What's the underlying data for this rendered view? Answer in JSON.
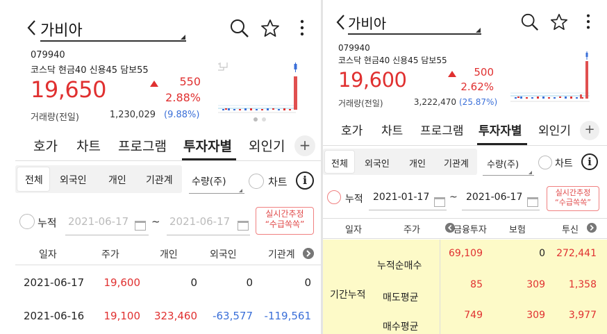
{
  "left": {
    "stock_name": "가비아",
    "code": "079940",
    "market_info": "코스닥 현금40 신용45 담보55",
    "price": "19,650",
    "change": "550",
    "change_pct": "2.88%",
    "volume_label": "거래량(전일)",
    "volume": "1,230,029",
    "volume_pct": "(9.88%)",
    "tabs": [
      "호가",
      "차트",
      "프로그램",
      "투자자별",
      "외인기"
    ],
    "plus": "+",
    "segments": [
      "전체",
      "외국인",
      "개인",
      "기관계"
    ],
    "unit": "수량(주)",
    "chart_toggle": "차트",
    "info": "i",
    "cumulative_label": "누적",
    "date_from": "2021-06-17",
    "tilde": "~",
    "date_to": "2021-06-17",
    "realtime_btn": [
      "실시간추정",
      "“수급쏙쏙”"
    ],
    "columns": [
      "일자",
      "주가",
      "개인",
      "외국인",
      "기관계"
    ],
    "rows": [
      {
        "date": "2021-06-17",
        "price": "19,600",
        "individual": "0",
        "foreign": "0",
        "institution": "0"
      },
      {
        "date": "2021-06-16",
        "price": "19,100",
        "individual": "323,460",
        "foreign": "-63,577",
        "institution": "-119,561"
      }
    ]
  },
  "right": {
    "stock_name": "가비아",
    "code": "079940",
    "market_info": "코스닥 현금40 신용45 담보55",
    "price": "19,600",
    "change": "500",
    "change_pct": "2.62%",
    "volume_label": "거래량(전일)",
    "volume": "3,222,470",
    "volume_pct": "(25.87%)",
    "tabs": [
      "호가",
      "차트",
      "프로그램",
      "투자자별",
      "외인기"
    ],
    "plus": "+",
    "segments": [
      "전체",
      "외국인",
      "개인",
      "기관계"
    ],
    "unit": "수량(주)",
    "chart_toggle": "차트",
    "info": "i",
    "cumulative_label": "누적",
    "date_from": "2021-01-17",
    "tilde": "~",
    "date_to": "2021-06-17",
    "realtime_btn": [
      "실시간추정",
      "“수급쏙쏙”"
    ],
    "columns": [
      "일자",
      "주가",
      "금융투자",
      "보험",
      "투신"
    ],
    "period_label": "기간누적",
    "rows": [
      {
        "label": "누적순매수",
        "fin": "69,109",
        "ins": "0",
        "trust": "272,441"
      },
      {
        "label": "매도평균",
        "fin": "85",
        "ins": "309",
        "trust": "1,358"
      },
      {
        "label": "매수평균",
        "fin": "749",
        "ins": "309",
        "trust": "3,977"
      }
    ]
  },
  "colors": {
    "up": "#e03030",
    "down": "#3a6fd8",
    "highlight": "#fdfac8"
  }
}
